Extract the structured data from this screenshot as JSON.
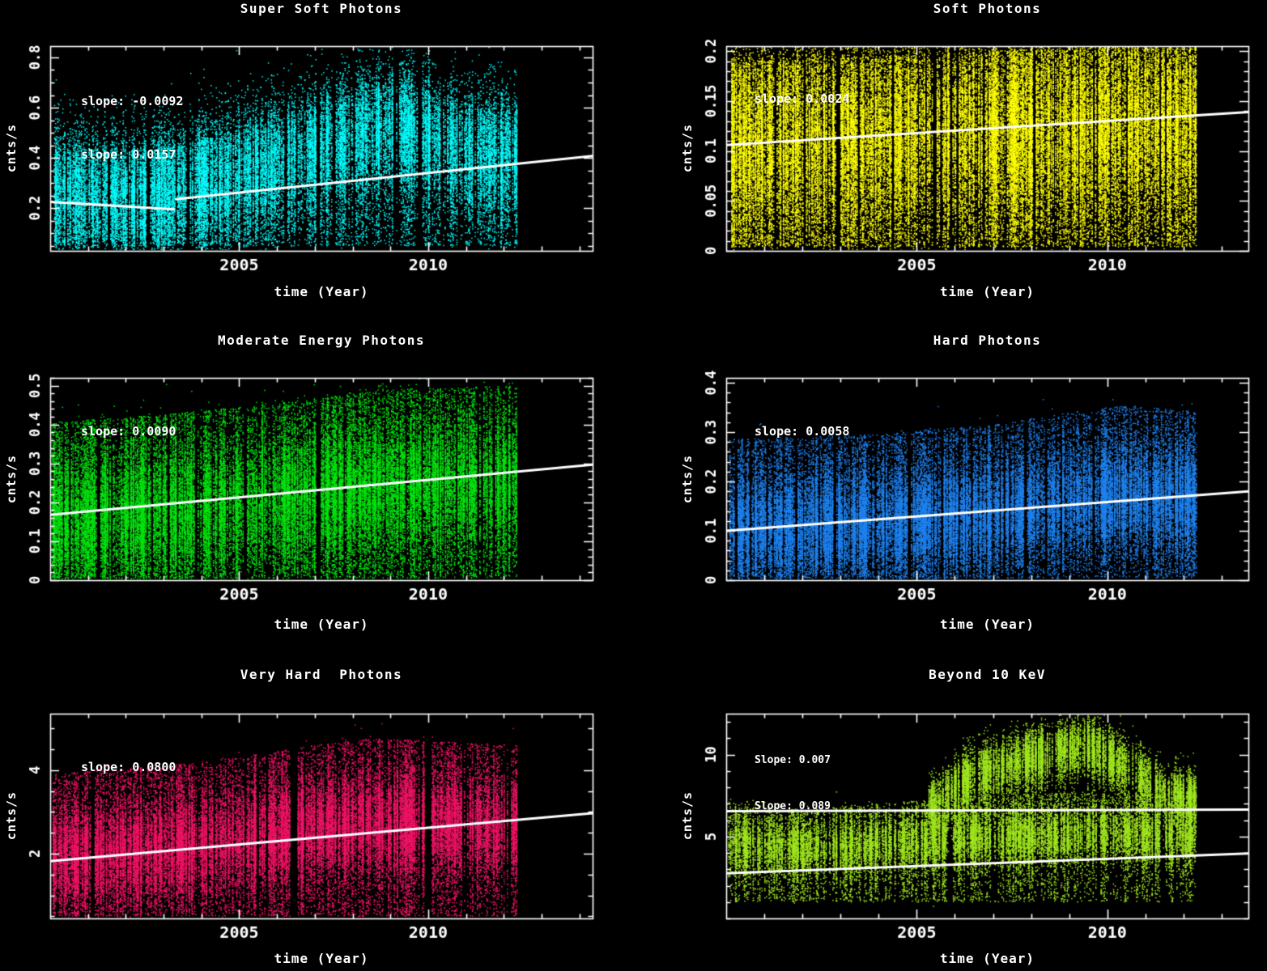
{
  "figure": {
    "background": "#000000",
    "text_color": "#ffffff"
  },
  "chart_data": [
    {
      "type": "scatter",
      "title": "Super Soft Photons",
      "xlabel": "time (Year)",
      "ylabel": "cnts/s",
      "color": "#00ffff",
      "trend_color": "#ffffff",
      "xlim": [
        2000.0,
        2014.35
      ],
      "ylim": [
        0.03,
        0.845
      ],
      "xticks": {
        "values": [
          2005,
          2010
        ],
        "labels": [
          "2005",
          "2010"
        ]
      },
      "yticks": {
        "values": [
          0.2,
          0.4,
          0.6,
          0.8
        ],
        "labels": [
          "0.2",
          "0.4",
          "0.6",
          "0.8"
        ]
      },
      "minor_x_step": 1,
      "minor_y_step": 0.05,
      "annotations": [
        "slope: -0.0092",
        "slope: 0.0157"
      ],
      "trend_lines": [
        {
          "x1": 2000.0,
          "y1": 0.225,
          "x2": 2003.3,
          "y2": 0.195
        },
        {
          "x1": 2003.3,
          "y1": 0.235,
          "x2": 2014.35,
          "y2": 0.408
        }
      ],
      "scatter": {
        "point_size": 1.5,
        "trange": [
          2000.05,
          2012.35
        ],
        "epochs": 640,
        "components": [
          {
            "n": 34000,
            "median": {
              "t": [
                2000,
                2002,
                2003.5,
                2005,
                2006.5,
                2008,
                2009,
                2009.8,
                2010.8,
                2012.3
              ],
              "v": [
                0.27,
                0.245,
                0.27,
                0.33,
                0.4,
                0.47,
                0.52,
                0.5,
                0.43,
                0.4
              ]
            },
            "sigma": 0.13,
            "tail_frac": 0.25,
            "tail_lo": 0.05,
            "tail_hi_offset": 0.18
          }
        ]
      }
    },
    {
      "type": "scatter",
      "title": "Soft Photons",
      "xlabel": "time (Year)",
      "ylabel": "cnts/s",
      "color": "#ffff00",
      "trend_color": "#ffffff",
      "xlim": [
        2000.0,
        2013.7
      ],
      "ylim": [
        0,
        0.205
      ],
      "xticks": {
        "values": [
          2005,
          2010
        ],
        "labels": [
          "2005",
          "2010"
        ]
      },
      "yticks": {
        "values": [
          0,
          0.05,
          0.1,
          0.15,
          0.2
        ],
        "labels": [
          "0",
          "0.05",
          "0.1",
          "0.15",
          "0.2"
        ]
      },
      "minor_x_step": 1,
      "minor_y_step": 0.01,
      "annotations": [
        "slope: 0.0024"
      ],
      "trend_lines": [
        {
          "x1": 2000.0,
          "y1": 0.106,
          "x2": 2013.7,
          "y2": 0.139
        }
      ],
      "scatter": {
        "point_size": 1.5,
        "trange": [
          2000.05,
          2012.35
        ],
        "epochs": 640,
        "components": [
          {
            "n": 55000,
            "median": {
              "t": [
                2000,
                2012.3
              ],
              "v": [
                0.108,
                0.128
              ]
            },
            "sigma": 0.047,
            "tail_frac": 0.35,
            "tail_lo": 0.004,
            "tail_hi_offset": 0.08
          }
        ]
      }
    },
    {
      "type": "scatter",
      "title": "Moderate Energy Photons",
      "xlabel": "time (Year)",
      "ylabel": "cnts/s",
      "color": "#00e60e",
      "trend_color": "#ffffff",
      "xlim": [
        2000.0,
        2014.35
      ],
      "ylim": [
        0,
        0.52
      ],
      "xticks": {
        "values": [
          2005,
          2010
        ],
        "labels": [
          "2005",
          "2010"
        ]
      },
      "yticks": {
        "values": [
          0,
          0.1,
          0.2,
          0.3,
          0.4,
          0.5
        ],
        "labels": [
          "0",
          "0.1",
          "0.2",
          "0.3",
          "0.4",
          "0.5"
        ]
      },
      "minor_x_step": 1,
      "minor_y_step": 0.02,
      "annotations": [
        "slope: 0.0090"
      ],
      "trend_lines": [
        {
          "x1": 2000.0,
          "y1": 0.168,
          "x2": 2014.35,
          "y2": 0.297
        }
      ],
      "scatter": {
        "point_size": 1.5,
        "trange": [
          2000.05,
          2012.35
        ],
        "epochs": 640,
        "components": [
          {
            "n": 48000,
            "median": {
              "t": [
                2000,
                2003,
                2006,
                2009,
                2012.3
              ],
              "v": [
                0.155,
                0.175,
                0.205,
                0.24,
                0.25
              ]
            },
            "sigma": 0.085,
            "tail_frac": 0.32,
            "tail_lo": 0.005,
            "tail_hi_offset": 0.25
          }
        ]
      }
    },
    {
      "type": "scatter",
      "title": "Hard Photons",
      "xlabel": "time (Year)",
      "ylabel": "cnts/s",
      "color": "#1e82f0",
      "trend_color": "#ffffff",
      "xlim": [
        2000.0,
        2013.7
      ],
      "ylim": [
        0,
        0.41
      ],
      "xticks": {
        "values": [
          2005,
          2010
        ],
        "labels": [
          "2005",
          "2010"
        ]
      },
      "yticks": {
        "values": [
          0,
          0.1,
          0.2,
          0.3,
          0.4
        ],
        "labels": [
          "0",
          "0.1",
          "0.2",
          "0.3",
          "0.4"
        ]
      },
      "minor_x_step": 1,
      "minor_y_step": 0.02,
      "annotations": [
        "slope: 0.0058"
      ],
      "trend_lines": [
        {
          "x1": 2000.0,
          "y1": 0.1,
          "x2": 2013.7,
          "y2": 0.18
        }
      ],
      "scatter": {
        "point_size": 1.5,
        "trange": [
          2000.05,
          2012.35
        ],
        "epochs": 640,
        "components": [
          {
            "n": 45000,
            "median": {
              "t": [
                2000,
                2004,
                2007,
                2009,
                2010.5,
                2012.3
              ],
              "v": [
                0.105,
                0.115,
                0.135,
                0.16,
                0.175,
                0.16
              ]
            },
            "sigma": 0.055,
            "tail_frac": 0.28,
            "tail_lo": 0.004,
            "tail_hi_offset": 0.18
          }
        ]
      }
    },
    {
      "type": "scatter",
      "title": "Very Hard  Photons",
      "xlabel": "time (Year)",
      "ylabel": "cnts/s",
      "color": "#ef1365",
      "trend_color": "#ffffff",
      "xlim": [
        2000.0,
        2014.35
      ],
      "ylim": [
        0.45,
        5.35
      ],
      "xticks": {
        "values": [
          2005,
          2010
        ],
        "labels": [
          "2005",
          "2010"
        ]
      },
      "yticks": {
        "values": [
          2,
          4
        ],
        "labels": [
          "2",
          "4"
        ]
      },
      "minor_x_step": 1,
      "minor_y_step": 0.5,
      "annotations": [
        "slope: 0.0800"
      ],
      "trend_lines": [
        {
          "x1": 2000.0,
          "y1": 1.82,
          "x2": 2014.35,
          "y2": 2.97
        }
      ],
      "scatter": {
        "point_size": 1.5,
        "trange": [
          2000.05,
          2012.35
        ],
        "epochs": 640,
        "components": [
          {
            "n": 45000,
            "median": {
              "t": [
                2000,
                2003,
                2005,
                2007,
                2008.5,
                2010,
                2012.3
              ],
              "v": [
                1.9,
                2.1,
                2.3,
                2.6,
                2.75,
                2.7,
                2.6
              ]
            },
            "sigma": 0.6,
            "tail_frac": 0.32,
            "tail_lo": 0.5,
            "tail_hi_offset": 2.0
          }
        ]
      }
    },
    {
      "type": "scatter",
      "title": "Beyond 10 KeV",
      "xlabel": "time (Year)",
      "ylabel": "cnts/s",
      "color": "#a0e61e",
      "trend_color": "#ffffff",
      "xlim": [
        2000.0,
        2013.7
      ],
      "ylim": [
        0,
        12.5
      ],
      "xticks": {
        "values": [
          2005,
          2010
        ],
        "labels": [
          "2005",
          "2010"
        ]
      },
      "yticks": {
        "values": [
          5,
          10
        ],
        "labels": [
          "5",
          "10"
        ]
      },
      "minor_x_step": 1,
      "minor_y_step": 1,
      "annotations": [
        "Slope: 0.007",
        "Slope: 0.089"
      ],
      "trend_lines": [
        {
          "x1": 2000.0,
          "y1": 6.55,
          "x2": 2013.7,
          "y2": 6.65
        },
        {
          "x1": 2000.0,
          "y1": 2.75,
          "x2": 2013.7,
          "y2": 3.97
        }
      ],
      "scatter": {
        "point_size": 1.5,
        "trange": [
          2000.05,
          2012.35
        ],
        "epochs": 640,
        "components": [
          {
            "n": 22000,
            "median": {
              "t": [
                2000,
                2002,
                2004,
                2006,
                2008,
                2010,
                2012.3
              ],
              "v": [
                4.6,
                4.2,
                4.5,
                4.9,
                5.1,
                5.2,
                4.9
              ]
            },
            "sigma": 0.9,
            "tail_frac": 0.3,
            "tail_lo": 1.0,
            "tail_hi_offset": 2.5
          },
          {
            "n": 13000,
            "trange": [
              2005.3,
              2012.35
            ],
            "epochs": 300,
            "median": {
              "t": [
                2005.3,
                2006.5,
                2008,
                2009.5,
                2010.5,
                2011.5,
                2012.3
              ],
              "v": [
                6.8,
                8.8,
                9.8,
                10.6,
                9.2,
                7.6,
                7.2
              ]
            },
            "sigma": 0.85,
            "tail_frac": 0.12,
            "tail_lo": 4.0,
            "tail_hi_offset": 1.2
          }
        ]
      }
    }
  ]
}
